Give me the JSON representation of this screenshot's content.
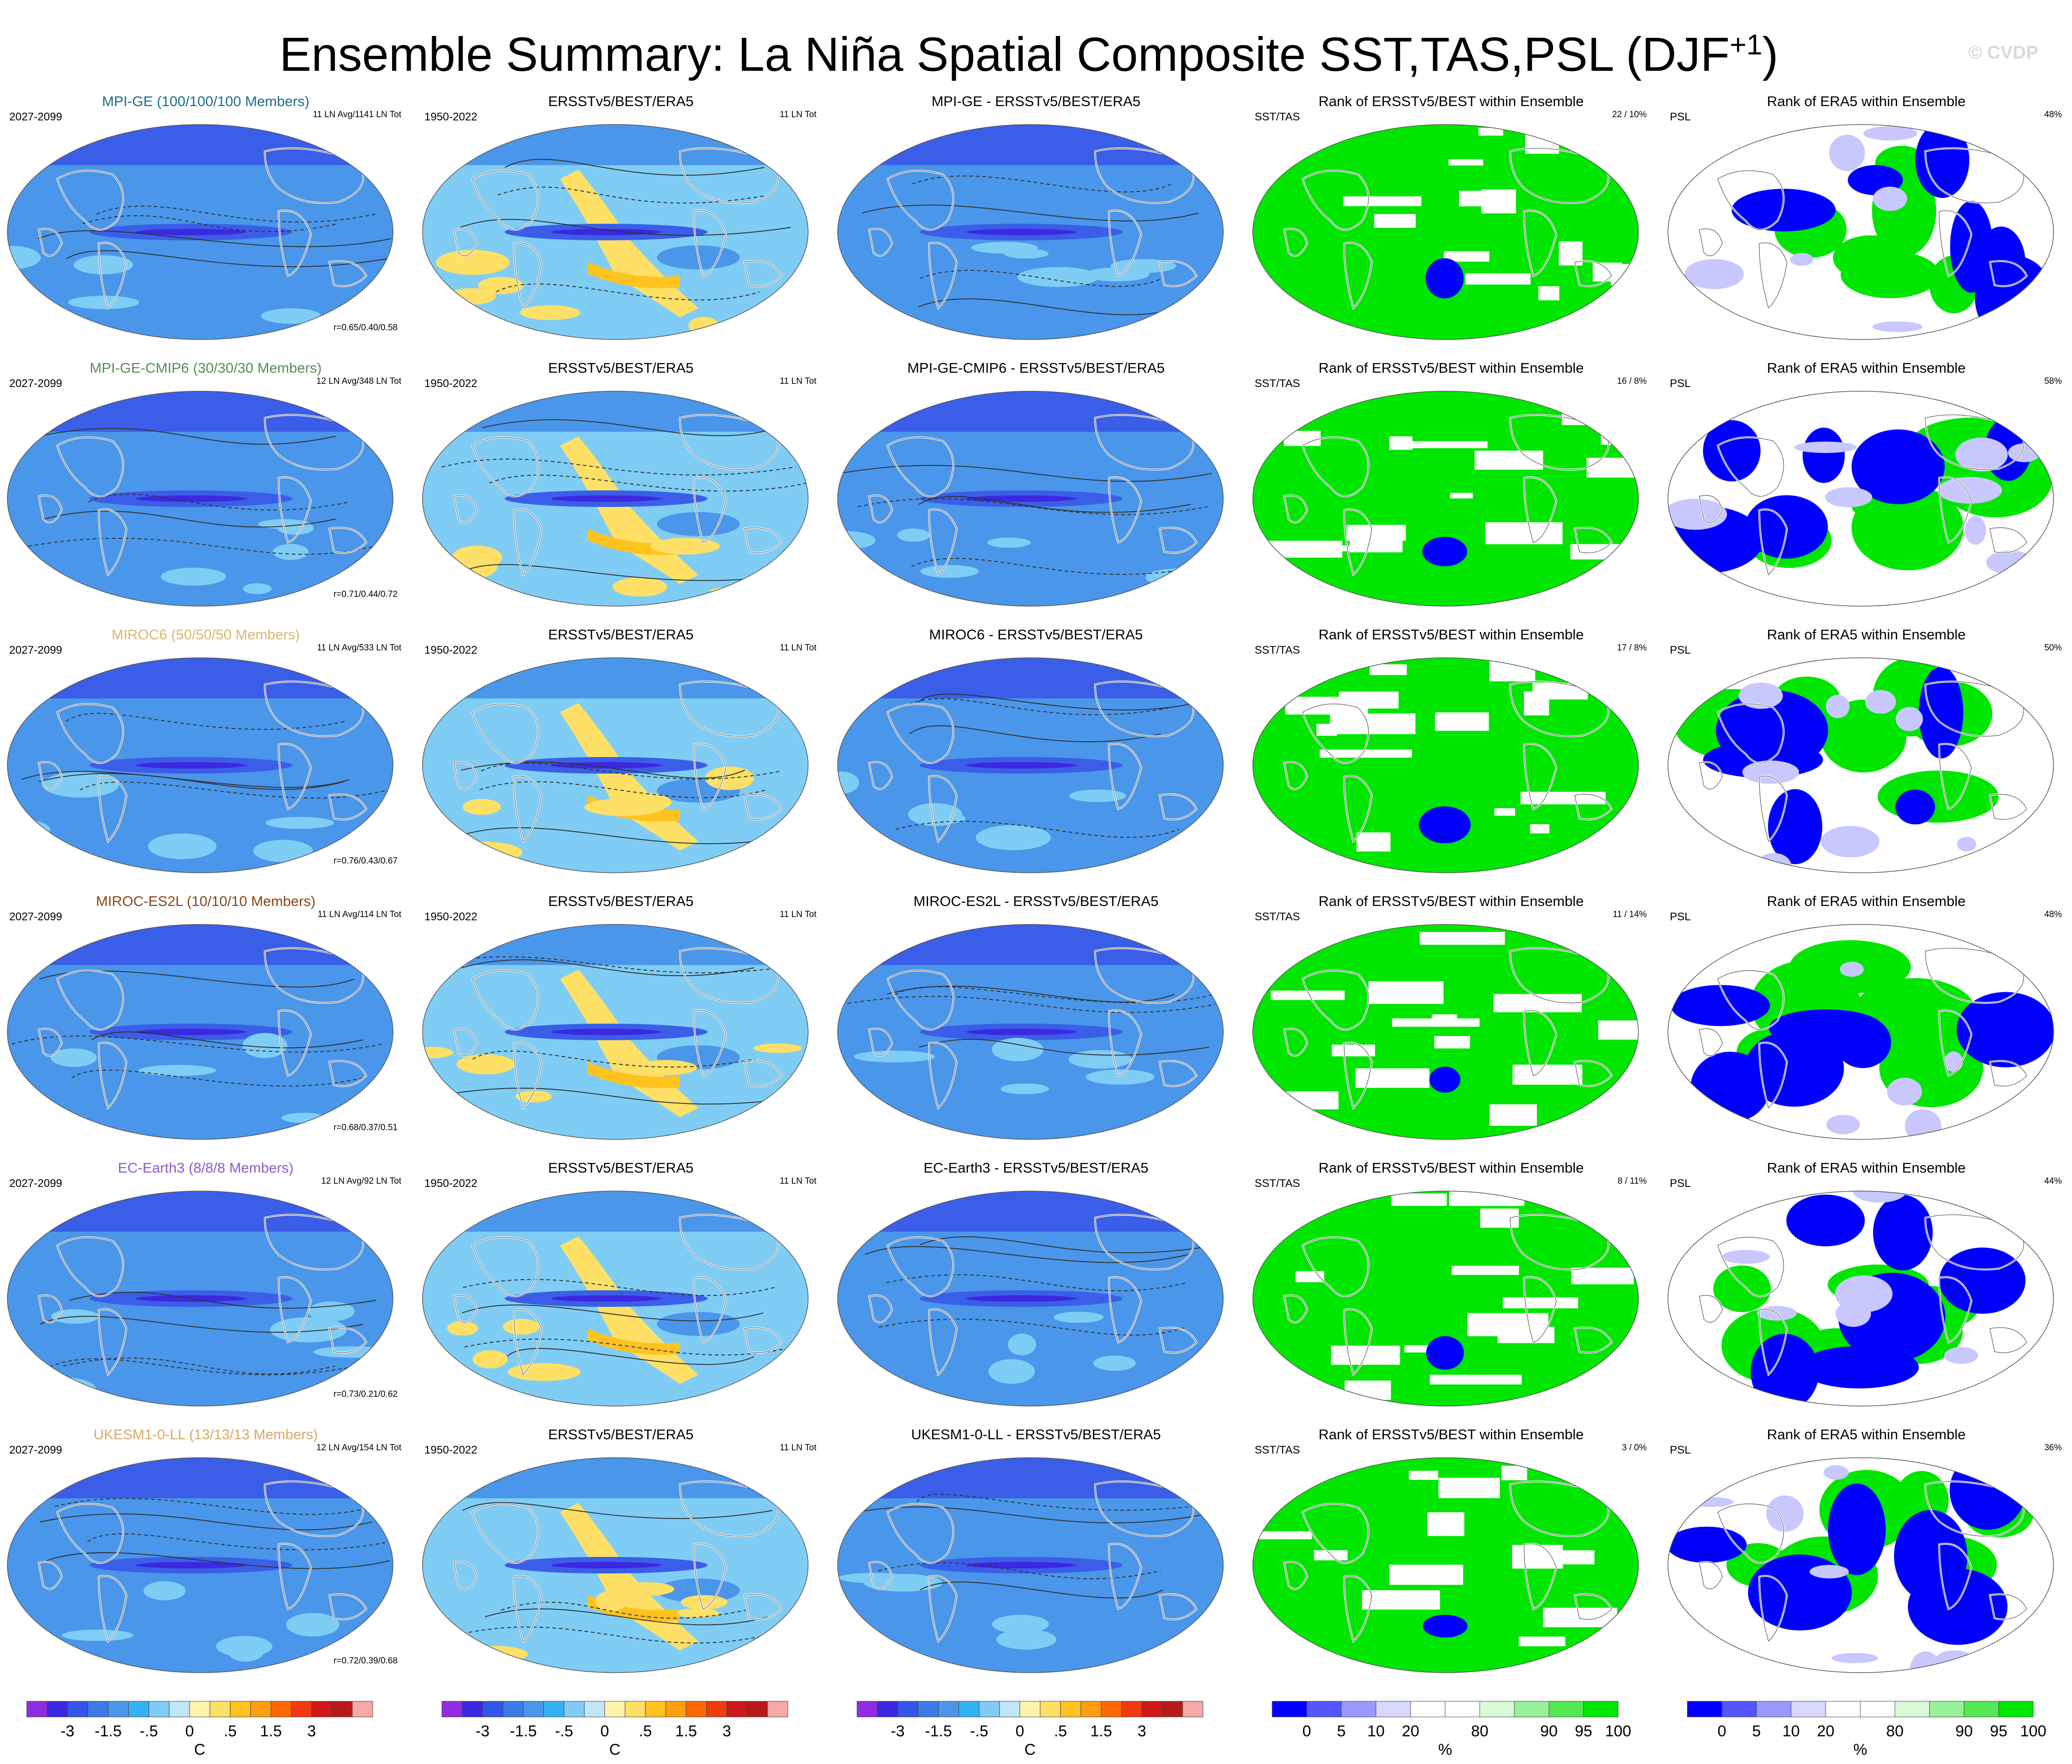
{
  "title": "Ensemble Summary: La Niña Spatial Composite SST,TAS,PSL (DJF",
  "title_sup": "+1",
  "title_close": ")",
  "watermark": "© CVDP",
  "rows": [
    {
      "model": "MPI-GE (100/100/100 Members)",
      "model_color": "#1b6f86",
      "period": "2027-2099",
      "avg": "11 LN Avg/1141 LN Tot",
      "corr": "r=0.65/0.40/0.58",
      "obs_period": "1950-2022",
      "obs_title": "ERSSTv5/BEST/ERA5",
      "obs_tot": "11 LN Tot",
      "diff_title": "MPI-GE - ERSSTv5/BEST/ERA5",
      "rank1_title": "Rank of ERSSTv5/BEST within Ensemble",
      "rank1_var": "SST/TAS",
      "rank1_stat": "22 /  10%",
      "rank2_title": "Rank of ERA5 within Ensemble",
      "rank2_var": "PSL",
      "rank2_stat": "48%"
    },
    {
      "model": "MPI-GE-CMIP6 (30/30/30 Members)",
      "model_color": "#5a8a5a",
      "period": "2027-2099",
      "avg": "12 LN Avg/348 LN Tot",
      "corr": "r=0.71/0.44/0.72",
      "obs_period": "1950-2022",
      "obs_title": "ERSSTv5/BEST/ERA5",
      "obs_tot": "11 LN Tot",
      "diff_title": "MPI-GE-CMIP6 - ERSSTv5/BEST/ERA5",
      "rank1_title": "Rank of ERSSTv5/BEST within Ensemble",
      "rank1_var": "SST/TAS",
      "rank1_stat": "16 /  8%",
      "rank2_title": "Rank of ERA5 within Ensemble",
      "rank2_var": "PSL",
      "rank2_stat": "58%"
    },
    {
      "model": "MIROC6 (50/50/50 Members)",
      "model_color": "#d8b870",
      "period": "2027-2099",
      "avg": "11 LN Avg/533 LN Tot",
      "corr": "r=0.76/0.43/0.67",
      "obs_period": "1950-2022",
      "obs_title": "ERSSTv5/BEST/ERA5",
      "obs_tot": "11 LN Tot",
      "diff_title": "MIROC6 - ERSSTv5/BEST/ERA5",
      "rank1_title": "Rank of ERSSTv5/BEST within Ensemble",
      "rank1_var": "SST/TAS",
      "rank1_stat": "17 /  8%",
      "rank2_title": "Rank of ERA5 within Ensemble",
      "rank2_var": "PSL",
      "rank2_stat": "50%"
    },
    {
      "model": "MIROC-ES2L (10/10/10 Members)",
      "model_color": "#8b4513",
      "period": "2027-2099",
      "avg": "11 LN Avg/114 LN Tot",
      "corr": "r=0.68/0.37/0.51",
      "obs_period": "1950-2022",
      "obs_title": "ERSSTv5/BEST/ERA5",
      "obs_tot": "11 LN Tot",
      "diff_title": "MIROC-ES2L - ERSSTv5/BEST/ERA5",
      "rank1_title": "Rank of ERSSTv5/BEST within Ensemble",
      "rank1_var": "SST/TAS",
      "rank1_stat": "11 /  14%",
      "rank2_title": "Rank of ERA5 within Ensemble",
      "rank2_var": "PSL",
      "rank2_stat": "48%"
    },
    {
      "model": "EC-Earth3 (8/8/8 Members)",
      "model_color": "#8a5cd0",
      "period": "2027-2099",
      "avg": "12 LN Avg/92 LN Tot",
      "corr": "r=0.73/0.21/0.62",
      "obs_period": "1950-2022",
      "obs_title": "ERSSTv5/BEST/ERA5",
      "obs_tot": "11 LN Tot",
      "diff_title": "EC-Earth3 - ERSSTv5/BEST/ERA5",
      "rank1_title": "Rank of ERSSTv5/BEST within Ensemble",
      "rank1_var": "SST/TAS",
      "rank1_stat": "8 /  11%",
      "rank2_title": "Rank of ERA5 within Ensemble",
      "rank2_var": "PSL",
      "rank2_stat": "44%"
    },
    {
      "model": "UKESM1-0-LL (13/13/13 Members)",
      "model_color": "#d8a868",
      "period": "2027-2099",
      "avg": "12 LN Avg/154 LN Tot",
      "corr": "r=0.72/0.39/0.68",
      "obs_period": "1950-2022",
      "obs_title": "ERSSTv5/BEST/ERA5",
      "obs_tot": "11 LN Tot",
      "diff_title": "UKESM1-0-LL - ERSSTv5/BEST/ERA5",
      "rank1_title": "Rank of ERSSTv5/BEST within Ensemble",
      "rank1_var": "SST/TAS",
      "rank1_stat": "3 /  0%",
      "rank2_title": "Rank of ERA5 within Ensemble",
      "rank2_var": "PSL",
      "rank2_stat": "36%"
    }
  ],
  "temp_colorbar": {
    "colors": [
      "#8f2be0",
      "#3b28e0",
      "#3355e8",
      "#3d7ae8",
      "#4a96ea",
      "#33b2f2",
      "#7fcdf5",
      "#c2e6f8",
      "#fff3b0",
      "#ffe066",
      "#ffc21f",
      "#ff9f10",
      "#ff6a00",
      "#ef3a10",
      "#cf1818",
      "#b81a1a",
      "#f5a8a8"
    ],
    "labels": [
      "-3",
      "-1.5",
      "-.5",
      "0",
      ".5",
      "1.5",
      "3"
    ],
    "unit": "C"
  },
  "rank_colorbar": {
    "colors": [
      "#0000ff",
      "#5555ff",
      "#9999ff",
      "#d8d8ff",
      "#ffffff",
      "#ffffff",
      "#d8fad8",
      "#99f099",
      "#55e855",
      "#00e600"
    ],
    "labels": [
      "0",
      "5",
      "10",
      "20",
      "80",
      "90",
      "95",
      "100"
    ],
    "unit": "%"
  },
  "palette": {
    "sst_deep": "#3b5ee8",
    "sst_mid": "#4a96ea",
    "sst_light": "#7fcdf5",
    "warm": "#ffe066",
    "warm2": "#ffc21f",
    "rank_green": "#00e600",
    "rank_blue": "#0000ff",
    "rank_light": "#c8c8ff"
  }
}
